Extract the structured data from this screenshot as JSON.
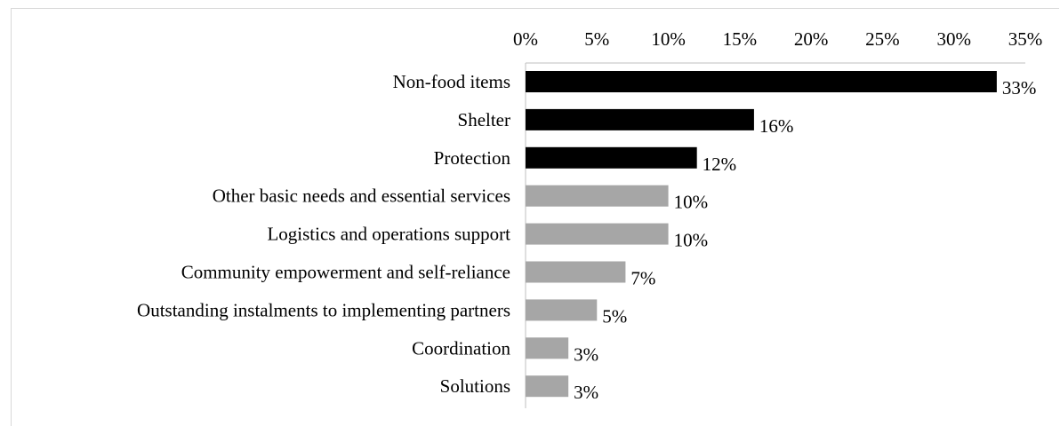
{
  "chart_data": {
    "type": "bar",
    "orientation": "horizontal",
    "categories": [
      "Non-food items",
      "Shelter",
      "Protection",
      "Other basic needs and essential services",
      "Logistics and operations support",
      "Community empowerment and self-reliance",
      "Outstanding instalments to implementing partners",
      "Coordination",
      "Solutions"
    ],
    "values": [
      33,
      16,
      12,
      10,
      10,
      7,
      5,
      3,
      3
    ],
    "value_labels": [
      "33%",
      "16%",
      "12%",
      "10%",
      "10%",
      "7%",
      "5%",
      "3%",
      "3%"
    ],
    "bar_colors": [
      "#000000",
      "#000000",
      "#000000",
      "#a6a6a6",
      "#a6a6a6",
      "#a6a6a6",
      "#a6a6a6",
      "#a6a6a6",
      "#a6a6a6"
    ],
    "xticks": [
      "0%",
      "5%",
      "10%",
      "15%",
      "20%",
      "25%",
      "30%",
      "35%"
    ],
    "xlim": [
      0,
      35
    ],
    "x_axis_position": "top",
    "grid": false,
    "title": "",
    "xlabel": "",
    "ylabel": ""
  }
}
